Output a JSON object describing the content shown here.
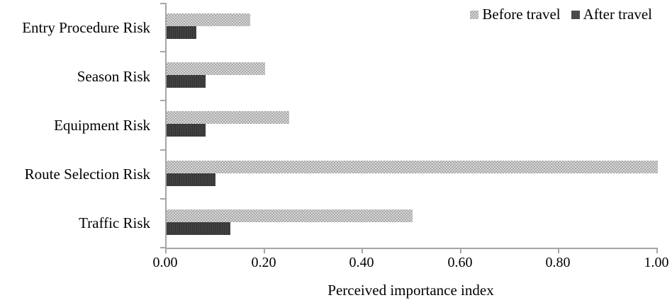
{
  "chart_data": {
    "type": "bar",
    "orientation": "horizontal",
    "categories": [
      "Entry Procedure Risk",
      "Season Risk",
      "Equipment Risk",
      "Route Selection Risk",
      "Traffic Risk"
    ],
    "series": [
      {
        "name": "Before travel",
        "values": [
          0.17,
          0.2,
          0.25,
          1.0,
          0.5
        ],
        "color": "#b3b3b3",
        "pattern": "checkerboard"
      },
      {
        "name": "After travel",
        "values": [
          0.06,
          0.08,
          0.08,
          0.1,
          0.13
        ],
        "color": "#424242",
        "pattern": "fine-vertical-lines"
      }
    ],
    "xlabel": "Perceived importance index",
    "x_ticks": [
      "0.00",
      "0.20",
      "0.40",
      "0.60",
      "0.80",
      "1.00"
    ],
    "xlim": [
      0.0,
      1.0
    ],
    "grid": false,
    "legend_position": "top-right",
    "axis_color": "#a6a6a6",
    "text_color": "#000000"
  }
}
